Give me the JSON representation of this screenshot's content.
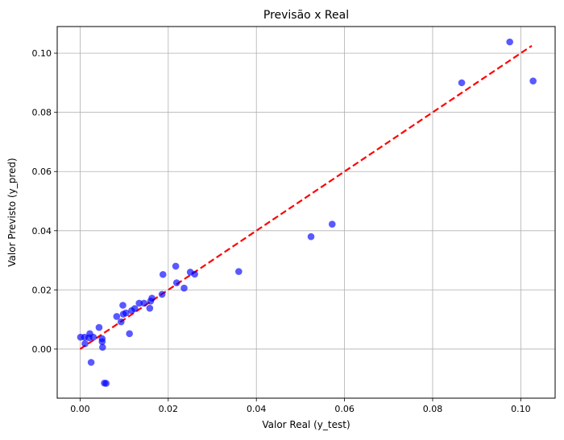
{
  "chart_data": {
    "type": "scatter",
    "title": "Previsão x Real",
    "xlabel": "Valor Real (y_test)",
    "ylabel": "Valor Previsto (y_pred)",
    "xlim": [
      -0.0052,
      0.1078
    ],
    "ylim": [
      -0.0166,
      0.109
    ],
    "grid": true,
    "x_ticks": [
      0.0,
      0.02,
      0.04,
      0.06,
      0.08,
      0.1
    ],
    "x_tick_labels": [
      "0.00",
      "0.02",
      "0.04",
      "0.06",
      "0.08",
      "0.10"
    ],
    "y_ticks": [
      0.0,
      0.02,
      0.04,
      0.06,
      0.08,
      0.1
    ],
    "y_tick_labels": [
      "0.00",
      "0.02",
      "0.04",
      "0.06",
      "0.08",
      "0.10"
    ],
    "point_color": "#0000ff",
    "point_opacity": 0.65,
    "line_color": "#ff0000",
    "reference_line": {
      "x": [
        0.0,
        0.1025
      ],
      "y": [
        0.0,
        0.1025
      ],
      "style": "dashed"
    },
    "points": [
      {
        "x": 0.0001,
        "y": 0.004
      },
      {
        "x": 0.001,
        "y": 0.004
      },
      {
        "x": 0.0011,
        "y": 0.0018
      },
      {
        "x": 0.002,
        "y": 0.0038
      },
      {
        "x": 0.0022,
        "y": 0.0052
      },
      {
        "x": 0.0025,
        "y": -0.0045
      },
      {
        "x": 0.003,
        "y": 0.004
      },
      {
        "x": 0.0043,
        "y": 0.0073
      },
      {
        "x": 0.005,
        "y": 0.0035
      },
      {
        "x": 0.005,
        "y": 0.0025
      },
      {
        "x": 0.0051,
        "y": 0.0006
      },
      {
        "x": 0.0055,
        "y": -0.0115
      },
      {
        "x": 0.0059,
        "y": -0.0116
      },
      {
        "x": 0.0083,
        "y": 0.011
      },
      {
        "x": 0.0093,
        "y": 0.0092
      },
      {
        "x": 0.0097,
        "y": 0.0148
      },
      {
        "x": 0.0098,
        "y": 0.0118
      },
      {
        "x": 0.0104,
        "y": 0.0122
      },
      {
        "x": 0.0112,
        "y": 0.0052
      },
      {
        "x": 0.0117,
        "y": 0.013
      },
      {
        "x": 0.0124,
        "y": 0.0137
      },
      {
        "x": 0.0134,
        "y": 0.0155
      },
      {
        "x": 0.0145,
        "y": 0.0155
      },
      {
        "x": 0.0158,
        "y": 0.0138
      },
      {
        "x": 0.016,
        "y": 0.0162
      },
      {
        "x": 0.0163,
        "y": 0.0172
      },
      {
        "x": 0.0186,
        "y": 0.0185
      },
      {
        "x": 0.0188,
        "y": 0.0252
      },
      {
        "x": 0.0217,
        "y": 0.028
      },
      {
        "x": 0.0219,
        "y": 0.0224
      },
      {
        "x": 0.0236,
        "y": 0.0206
      },
      {
        "x": 0.025,
        "y": 0.026
      },
      {
        "x": 0.026,
        "y": 0.0253
      },
      {
        "x": 0.036,
        "y": 0.0262
      },
      {
        "x": 0.0524,
        "y": 0.038
      },
      {
        "x": 0.0572,
        "y": 0.0422
      },
      {
        "x": 0.0866,
        "y": 0.09
      },
      {
        "x": 0.0975,
        "y": 0.1038
      },
      {
        "x": 0.1028,
        "y": 0.0906
      }
    ]
  }
}
